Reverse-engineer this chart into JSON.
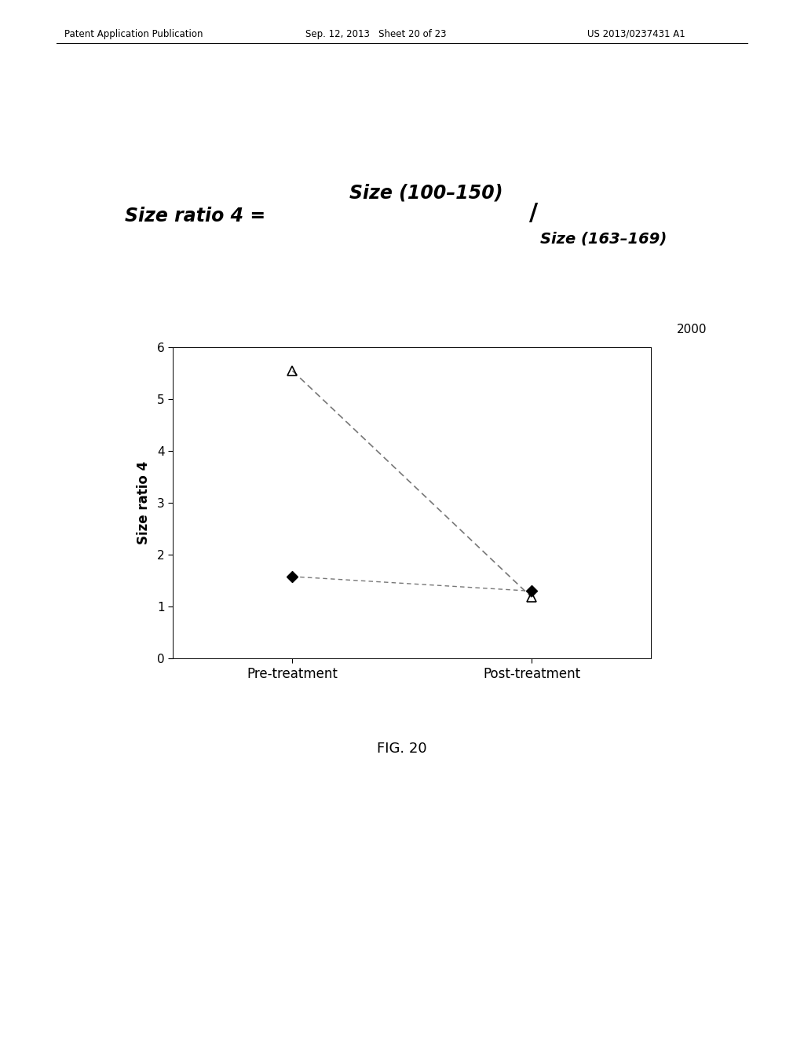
{
  "label_2000": "2000",
  "ylabel": "Size ratio 4",
  "xlabel_ticks": [
    "Pre-treatment",
    "Post-treatment"
  ],
  "x_positions": [
    1,
    2
  ],
  "ylim": [
    0,
    6
  ],
  "yticks": [
    0,
    1,
    2,
    3,
    4,
    5,
    6
  ],
  "fig_label": "FIG. 20",
  "patent_header_left": "Patent Application Publication",
  "patent_header_mid": "Sep. 12, 2013   Sheet 20 of 23",
  "patent_header_right": "US 2013/0237431 A1",
  "series_diamond": {
    "pre": 1.58,
    "post": 1.3
  },
  "series_triangle": {
    "pre": 5.55,
    "post": 1.18
  },
  "line_color": "#777777",
  "background_color": "#ffffff",
  "formula_prefix": "Size ratio 4 = ",
  "formula_numerator": "Size (100–150)",
  "formula_denominator": "Size (163–169)"
}
